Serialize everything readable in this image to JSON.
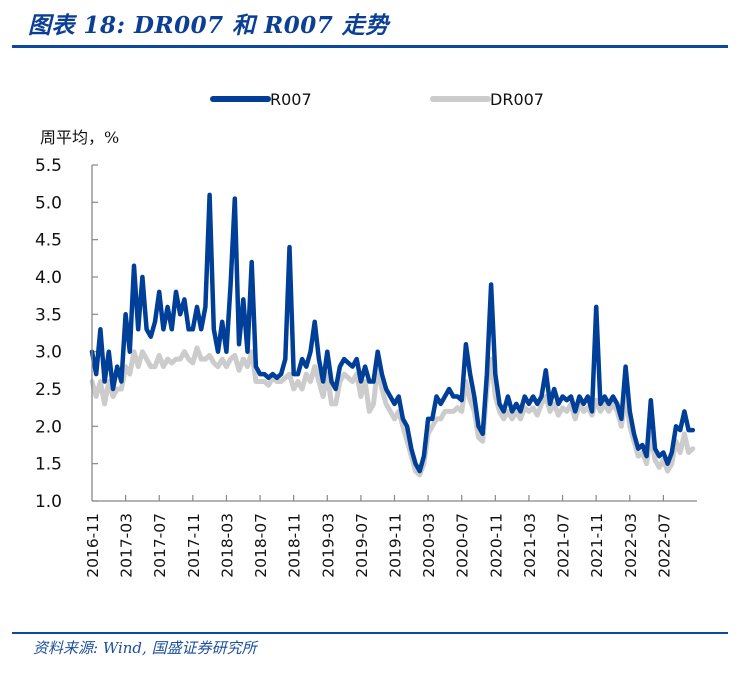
{
  "title": "图表 18:  DR007 和 R007 走势",
  "source": "资料来源:  Wind,  国盛证券研究所",
  "chart_data": {
    "type": "line",
    "title": "DR007 和 R007 走势",
    "ylabel": "周平均，%",
    "xlabel": "",
    "ylim": [
      1.0,
      5.5
    ],
    "yticks": [
      "5.5",
      "5.0",
      "4.5",
      "4.0",
      "3.5",
      "3.0",
      "2.5",
      "2.0",
      "1.5",
      "1.0"
    ],
    "ytick_values": [
      5.5,
      5.0,
      4.5,
      4.0,
      3.5,
      3.0,
      2.5,
      2.0,
      1.5,
      1.0
    ],
    "xticks": [
      "2016-11",
      "2017-03",
      "2017-07",
      "2017-11",
      "2018-03",
      "2018-07",
      "2018-11",
      "2019-03",
      "2019-07",
      "2019-11",
      "2020-03",
      "2020-07",
      "2020-11",
      "2021-03",
      "2021-07",
      "2021-11",
      "2022-03",
      "2022-07"
    ],
    "x_range_months": [
      0,
      72
    ],
    "x_step_months": 0.5,
    "grid": false,
    "legend_position": "top-center",
    "series": [
      {
        "name": "R007",
        "color": "#003f98",
        "values": [
          3.0,
          2.7,
          3.3,
          2.6,
          3.0,
          2.5,
          2.8,
          2.6,
          3.5,
          3.0,
          4.15,
          3.3,
          4.0,
          3.3,
          3.2,
          3.4,
          3.8,
          3.3,
          3.6,
          3.3,
          3.8,
          3.5,
          3.7,
          3.3,
          3.3,
          3.6,
          3.3,
          3.6,
          5.1,
          3.3,
          3.0,
          3.4,
          3.0,
          3.9,
          5.05,
          3.1,
          3.7,
          3.0,
          4.2,
          2.8,
          2.7,
          2.7,
          2.65,
          2.7,
          2.65,
          2.7,
          2.9,
          4.4,
          2.7,
          2.7,
          2.9,
          2.8,
          3.0,
          3.4,
          2.9,
          2.6,
          3.0,
          2.6,
          2.5,
          2.8,
          2.9,
          2.85,
          2.8,
          2.9,
          2.6,
          2.8,
          2.6,
          2.6,
          3.0,
          2.7,
          2.5,
          2.4,
          2.3,
          2.4,
          2.1,
          2.0,
          1.7,
          1.5,
          1.4,
          1.6,
          2.1,
          2.1,
          2.4,
          2.3,
          2.4,
          2.5,
          2.4,
          2.4,
          2.35,
          3.1,
          2.7,
          2.4,
          2.0,
          1.9,
          2.7,
          3.9,
          2.7,
          2.3,
          2.2,
          2.4,
          2.2,
          2.3,
          2.2,
          2.4,
          2.3,
          2.4,
          2.3,
          2.4,
          2.75,
          2.3,
          2.5,
          2.3,
          2.4,
          2.35,
          2.4,
          2.2,
          2.4,
          2.3,
          2.4,
          2.2,
          3.6,
          2.3,
          2.4,
          2.3,
          2.4,
          2.3,
          2.1,
          2.8,
          2.2,
          1.9,
          1.7,
          1.75,
          1.6,
          2.35,
          1.7,
          1.6,
          1.65,
          1.5,
          1.65,
          2.0,
          1.95,
          2.2,
          1.95,
          1.95
        ]
      },
      {
        "name": "DR007",
        "color": "#cccccc",
        "values": [
          2.6,
          2.4,
          2.6,
          2.3,
          2.6,
          2.4,
          2.5,
          2.5,
          2.8,
          2.7,
          3.0,
          2.8,
          3.0,
          2.9,
          2.8,
          2.8,
          2.95,
          2.8,
          2.9,
          2.85,
          2.9,
          2.9,
          3.0,
          2.9,
          2.85,
          3.05,
          2.9,
          2.9,
          2.95,
          2.85,
          2.8,
          2.9,
          2.8,
          2.9,
          2.95,
          2.75,
          2.9,
          2.8,
          3.0,
          2.6,
          2.6,
          2.6,
          2.55,
          2.65,
          2.6,
          2.6,
          2.65,
          2.7,
          2.5,
          2.6,
          2.5,
          2.7,
          2.6,
          2.8,
          2.6,
          2.4,
          2.7,
          2.3,
          2.3,
          2.6,
          2.7,
          2.65,
          2.6,
          2.7,
          2.4,
          2.6,
          2.2,
          2.3,
          2.8,
          2.5,
          2.3,
          2.2,
          2.1,
          2.2,
          2.0,
          1.8,
          1.6,
          1.4,
          1.35,
          1.5,
          1.9,
          2.0,
          2.1,
          2.1,
          2.2,
          2.2,
          2.2,
          2.25,
          2.2,
          2.6,
          2.35,
          2.2,
          1.85,
          1.8,
          2.5,
          2.9,
          2.4,
          2.2,
          2.1,
          2.2,
          2.1,
          2.2,
          2.1,
          2.25,
          2.2,
          2.25,
          2.15,
          2.3,
          2.4,
          2.2,
          2.3,
          2.15,
          2.25,
          2.2,
          2.3,
          2.1,
          2.3,
          2.2,
          2.25,
          2.15,
          2.35,
          2.2,
          2.3,
          2.2,
          2.3,
          2.2,
          2.0,
          2.4,
          2.0,
          1.8,
          1.6,
          1.65,
          1.5,
          1.9,
          1.55,
          1.45,
          1.55,
          1.4,
          1.5,
          1.8,
          1.65,
          1.9,
          1.65,
          1.7
        ]
      }
    ]
  }
}
